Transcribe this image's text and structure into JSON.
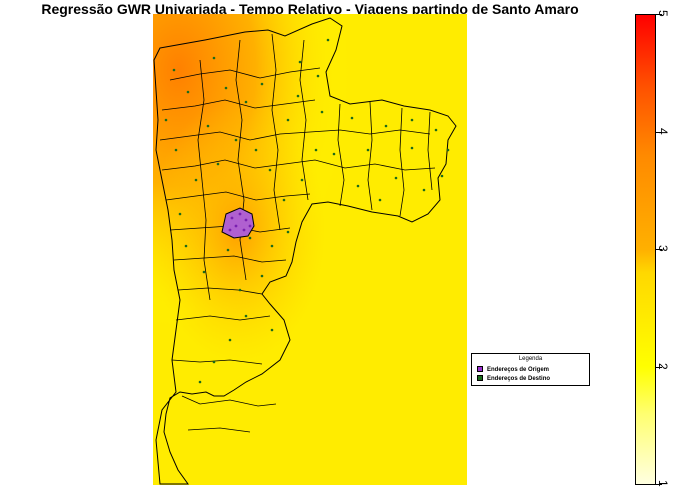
{
  "title": "Regressão GWR Univariada - Tempo Relativo - Viagens partindo de Santo Amaro",
  "legend": {
    "title": "Legenda",
    "items": [
      {
        "label": "Endereços de Origem",
        "color": "#9b30d0"
      },
      {
        "label": "Endereços de Destino",
        "color": "#1a6b1a"
      }
    ]
  },
  "colorbar": {
    "min": 1,
    "max": 5,
    "ticks": [
      "1",
      "2",
      "3",
      "4",
      "5"
    ],
    "colors": [
      "#ffffe0",
      "#ffff00",
      "#ffb000",
      "#ff8a00",
      "#ff0000"
    ]
  },
  "map": {
    "background_colors": [
      "#ffff00",
      "#ffc800",
      "#ff8c00"
    ]
  }
}
